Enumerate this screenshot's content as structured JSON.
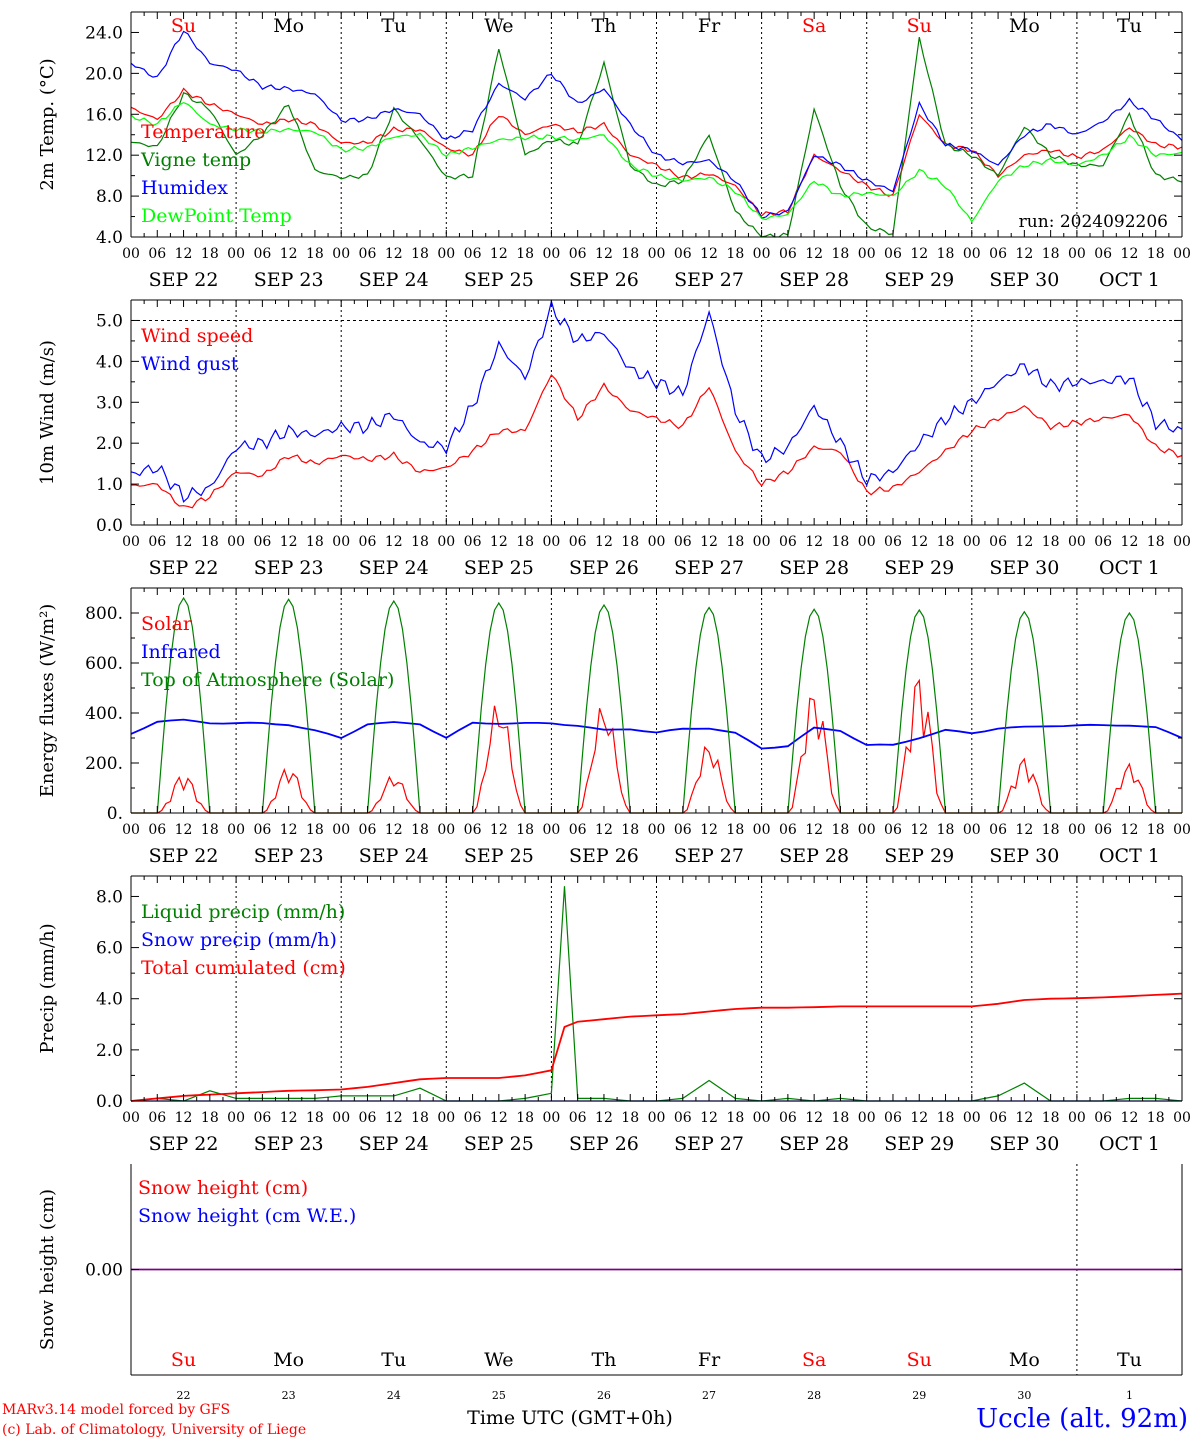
{
  "footer": {
    "model": "MARv3.14 model forced by GFS",
    "lab": "(c) Lab. of Climatology, University of Liege",
    "xlabel": "Time UTC (GMT+0h)",
    "station": "Uccle (alt. 92m)"
  },
  "hour_labels": [
    "00",
    "06",
    "12",
    "18"
  ],
  "final_hour_label": "00",
  "day_labels": [
    "SEP 22",
    "SEP 23",
    "SEP 24",
    "SEP 25",
    "SEP 26",
    "SEP 27",
    "SEP 28",
    "SEP 29",
    "SEP 30",
    "OCT  1"
  ],
  "weekdays": [
    {
      "name": "Su",
      "weekend": true
    },
    {
      "name": "Mo",
      "weekend": false
    },
    {
      "name": "Tu",
      "weekend": false
    },
    {
      "name": "We",
      "weekend": false
    },
    {
      "name": "Th",
      "weekend": false
    },
    {
      "name": "Fr",
      "weekend": false
    },
    {
      "name": "Sa",
      "weekend": true
    },
    {
      "name": "Su",
      "weekend": true
    },
    {
      "name": "Mo",
      "weekend": false
    },
    {
      "name": "Tu",
      "weekend": false
    }
  ],
  "day_numbers": [
    "22",
    "23",
    "24",
    "25",
    "26",
    "27",
    "28",
    "29",
    "30",
    "1"
  ],
  "colors": {
    "red": "#ff0000",
    "green": "#008000",
    "blue": "#0000ff",
    "lime": "#00ff00",
    "purple": "#800080",
    "weekend": "#ff0000"
  },
  "chart_data": [
    {
      "type": "line",
      "ylabel": "2m Temp. (°C)",
      "ylim": [
        4,
        26
      ],
      "yticks": [
        "4.0",
        "8.0",
        "12.0",
        "16.0",
        "20.0",
        "24.0"
      ],
      "dashed_y": null,
      "annotation": "run: 2024092206",
      "x": [
        "09-22 00",
        "09-22 06",
        "09-22 12",
        "09-22 18",
        "09-23 00",
        "09-23 06",
        "09-23 12",
        "09-23 18",
        "09-24 00",
        "09-24 06",
        "09-24 12",
        "09-24 18",
        "09-25 00",
        "09-25 06",
        "09-25 12",
        "09-25 18",
        "09-26 00",
        "09-26 06",
        "09-26 12",
        "09-26 18",
        "09-27 00",
        "09-27 06",
        "09-27 12",
        "09-27 18",
        "09-28 00",
        "09-28 06",
        "09-28 12",
        "09-28 18",
        "09-29 00",
        "09-29 06",
        "09-29 12",
        "09-29 18",
        "09-30 00",
        "09-30 06",
        "09-30 12",
        "09-30 18",
        "10-01 00",
        "10-01 06",
        "10-01 12",
        "10-01 18",
        "10-02 00"
      ],
      "series": [
        {
          "name": "Temperature",
          "color": "#ff0000",
          "values": [
            16.6,
            15.5,
            18.3,
            17.0,
            16.0,
            15.0,
            15.5,
            15.0,
            13.2,
            13.2,
            14.5,
            14.5,
            12.7,
            12.0,
            16.0,
            14.0,
            15.0,
            14.3,
            15.0,
            12.0,
            11.0,
            9.8,
            10.2,
            9.0,
            6.2,
            6.5,
            12.0,
            10.5,
            9.0,
            8.0,
            16.0,
            13.0,
            12.5,
            10.0,
            12.0,
            12.5,
            11.8,
            12.5,
            14.7,
            13.0,
            12.8
          ]
        },
        {
          "name": "Vigne temp",
          "color": "#008000",
          "values": [
            13.3,
            12.8,
            18.0,
            16.5,
            12.0,
            14.0,
            17.0,
            10.5,
            9.8,
            10.0,
            16.5,
            13.5,
            9.8,
            10.0,
            22.5,
            12.0,
            13.5,
            13.0,
            21.0,
            11.0,
            9.0,
            9.5,
            14.0,
            6.5,
            4.0,
            4.2,
            16.5,
            9.0,
            5.0,
            4.3,
            23.5,
            13.0,
            12.0,
            10.0,
            14.8,
            12.0,
            11.0,
            11.0,
            16.0,
            10.0,
            9.5
          ]
        },
        {
          "name": "Humidex",
          "color": "#0000ff",
          "values": [
            21.0,
            19.5,
            24.2,
            21.0,
            20.3,
            18.7,
            18.5,
            18.0,
            15.4,
            15.5,
            16.5,
            16.0,
            13.5,
            14.5,
            19.0,
            17.5,
            20.0,
            17.0,
            18.5,
            15.0,
            12.0,
            11.2,
            11.5,
            9.5,
            6.0,
            6.5,
            12.0,
            11.0,
            9.5,
            8.5,
            17.0,
            13.0,
            12.5,
            11.0,
            14.0,
            15.0,
            14.0,
            15.3,
            17.3,
            15.5,
            13.5
          ]
        },
        {
          "name": "DewPoint Temp",
          "color": "#00ff00",
          "values": [
            15.8,
            15.0,
            17.3,
            15.0,
            14.5,
            14.3,
            14.5,
            14.3,
            12.5,
            12.7,
            13.8,
            14.0,
            12.0,
            12.7,
            13.5,
            13.7,
            13.8,
            13.5,
            14.0,
            11.0,
            10.0,
            9.5,
            9.8,
            8.5,
            5.8,
            6.2,
            9.5,
            8.0,
            8.3,
            8.0,
            10.5,
            9.0,
            5.5,
            9.5,
            11.0,
            11.5,
            11.0,
            12.0,
            13.8,
            12.0,
            12.2
          ]
        }
      ]
    },
    {
      "type": "line",
      "ylabel": "10m Wind (m/s)",
      "ylim": [
        0,
        5.5
      ],
      "yticks": [
        "0.0",
        "1.0",
        "2.0",
        "3.0",
        "4.0",
        "5.0"
      ],
      "dashed_y": 5.0,
      "annotation": "",
      "x": [
        "09-22 00",
        "09-22 06",
        "09-22 12",
        "09-22 18",
        "09-23 00",
        "09-23 06",
        "09-23 12",
        "09-23 18",
        "09-24 00",
        "09-24 06",
        "09-24 12",
        "09-24 18",
        "09-25 00",
        "09-25 06",
        "09-25 12",
        "09-25 18",
        "09-26 00",
        "09-26 06",
        "09-26 12",
        "09-26 18",
        "09-27 00",
        "09-27 06",
        "09-27 12",
        "09-27 18",
        "09-28 00",
        "09-28 06",
        "09-28 12",
        "09-28 18",
        "09-29 00",
        "09-29 06",
        "09-29 12",
        "09-29 18",
        "09-30 00",
        "09-30 06",
        "09-30 12",
        "09-30 18",
        "10-01 00",
        "10-01 06",
        "10-01 12",
        "10-01 18",
        "10-02 00"
      ],
      "series": [
        {
          "name": "Wind speed",
          "color": "#ff0000",
          "values": [
            0.95,
            1.0,
            0.4,
            0.7,
            1.3,
            1.2,
            1.7,
            1.5,
            1.7,
            1.6,
            1.7,
            1.3,
            1.4,
            1.8,
            2.3,
            2.3,
            3.7,
            2.6,
            3.4,
            2.8,
            2.6,
            2.4,
            3.4,
            1.8,
            1.0,
            1.3,
            1.9,
            1.8,
            0.8,
            0.9,
            1.3,
            1.8,
            2.3,
            2.6,
            2.9,
            2.4,
            2.5,
            2.6,
            2.7,
            1.9,
            1.7
          ]
        },
        {
          "name": "Wind gust",
          "color": "#0000ff",
          "values": [
            1.25,
            1.4,
            0.7,
            0.9,
            1.9,
            2.0,
            2.3,
            2.2,
            2.4,
            2.4,
            2.7,
            2.0,
            1.9,
            2.9,
            4.4,
            3.6,
            5.3,
            4.5,
            4.7,
            3.8,
            3.5,
            3.2,
            5.2,
            2.8,
            1.6,
            1.9,
            2.9,
            2.0,
            1.1,
            1.3,
            2.0,
            2.6,
            3.0,
            3.5,
            3.9,
            3.4,
            3.5,
            3.5,
            3.6,
            2.5,
            2.3
          ]
        }
      ]
    },
    {
      "type": "line",
      "ylabel": "Energy fluxes (W/m²)",
      "ylim": [
        0,
        900
      ],
      "yticks": [
        "0.",
        "200.",
        "400.",
        "600.",
        "800."
      ],
      "dashed_y": null,
      "annotation": "",
      "series": [
        {
          "name": "Solar",
          "color": "#ff0000",
          "peaks": [
            160,
            190,
            155,
            460,
            450,
            285,
            505,
            570,
            225,
            200
          ]
        },
        {
          "name": "Infrared",
          "color": "#0000ff",
          "x": [
            "09-22 00",
            "09-22 06",
            "09-22 12",
            "09-22 18",
            "09-23 00",
            "09-23 06",
            "09-23 12",
            "09-23 18",
            "09-24 00",
            "09-24 06",
            "09-24 12",
            "09-24 18",
            "09-25 00",
            "09-25 06",
            "09-25 12",
            "09-25 18",
            "09-26 00",
            "09-26 06",
            "09-26 12",
            "09-26 18",
            "09-27 00",
            "09-27 06",
            "09-27 12",
            "09-27 18",
            "09-28 00",
            "09-28 06",
            "09-28 12",
            "09-28 18",
            "09-29 00",
            "09-29 06",
            "09-29 12",
            "09-29 18",
            "09-30 00",
            "09-30 06",
            "09-30 12",
            "09-30 18",
            "10-01 00",
            "10-01 06",
            "10-01 12",
            "10-01 18",
            "10-02 00"
          ],
          "values": [
            315,
            365,
            370,
            360,
            360,
            360,
            355,
            330,
            300,
            355,
            360,
            355,
            300,
            360,
            360,
            360,
            360,
            350,
            330,
            335,
            320,
            335,
            340,
            320,
            260,
            270,
            340,
            330,
            270,
            270,
            300,
            330,
            320,
            340,
            345,
            350,
            350,
            350,
            350,
            340,
            300
          ]
        },
        {
          "name": "Top of Atmosphere (Solar)",
          "color": "#008000",
          "peaks": [
            860,
            855,
            848,
            840,
            832,
            822,
            815,
            812,
            805,
            800
          ]
        }
      ]
    },
    {
      "type": "line",
      "ylabel": "Precip (mm/h)",
      "ylim": [
        0,
        8.8
      ],
      "yticks": [
        "0.0",
        "2.0",
        "4.0",
        "6.0",
        "8.0"
      ],
      "dashed_y": null,
      "annotation": "",
      "x": [
        "09-22 00",
        "09-22 06",
        "09-22 12",
        "09-22 18",
        "09-23 00",
        "09-23 06",
        "09-23 12",
        "09-23 18",
        "09-24 00",
        "09-24 06",
        "09-24 12",
        "09-24 18",
        "09-25 00",
        "09-25 06",
        "09-25 12",
        "09-25 18",
        "09-26 00",
        "09-26 03",
        "09-26 06",
        "09-26 12",
        "09-26 18",
        "09-27 00",
        "09-27 06",
        "09-27 12",
        "09-27 18",
        "09-28 00",
        "09-28 06",
        "09-28 12",
        "09-28 18",
        "09-29 00",
        "09-29 06",
        "09-29 12",
        "09-29 18",
        "09-30 00",
        "09-30 06",
        "09-30 12",
        "09-30 18",
        "10-01 00",
        "10-01 06",
        "10-01 12",
        "10-01 18",
        "10-02 00"
      ],
      "series": [
        {
          "name": "Liquid precip (mm/h)",
          "color": "#008000",
          "values": [
            0.0,
            0.1,
            0.0,
            0.4,
            0.1,
            0.1,
            0.1,
            0.1,
            0.2,
            0.2,
            0.2,
            0.5,
            0.0,
            0.0,
            0.0,
            0.1,
            0.3,
            8.4,
            0.1,
            0.1,
            0.0,
            0.0,
            0.1,
            0.8,
            0.1,
            0.0,
            0.1,
            0.0,
            0.1,
            0.0,
            0.0,
            0.0,
            0.0,
            0.0,
            0.2,
            0.7,
            0.0,
            0.0,
            0.0,
            0.1,
            0.1,
            0.0
          ]
        },
        {
          "name": "Snow precip (mm/h)",
          "color": "#0000ff",
          "values": [
            0.0,
            0.0,
            0.0,
            0.0,
            0.0,
            0.0,
            0.0,
            0.0,
            0.0,
            0.0,
            0.0,
            0.0,
            0.0,
            0.0,
            0.0,
            0.0,
            0.0,
            0.0,
            0.0,
            0.0,
            0.0,
            0.0,
            0.0,
            0.0,
            0.0,
            0.0,
            0.0,
            0.0,
            0.0,
            0.0,
            0.0,
            0.0,
            0.0,
            0.0,
            0.0,
            0.0,
            0.0,
            0.0,
            0.0,
            0.0,
            0.0,
            0.0
          ]
        },
        {
          "name": "Total cumulated (cm)",
          "color": "#ff0000",
          "values": [
            0.0,
            0.1,
            0.2,
            0.25,
            0.3,
            0.35,
            0.4,
            0.42,
            0.45,
            0.55,
            0.7,
            0.85,
            0.9,
            0.9,
            0.9,
            1.0,
            1.2,
            2.9,
            3.1,
            3.2,
            3.3,
            3.35,
            3.4,
            3.5,
            3.6,
            3.65,
            3.65,
            3.67,
            3.7,
            3.7,
            3.7,
            3.7,
            3.7,
            3.7,
            3.8,
            3.95,
            4.0,
            4.02,
            4.05,
            4.1,
            4.15,
            4.2
          ]
        }
      ]
    },
    {
      "type": "line",
      "ylabel": "Snow height (cm)",
      "ylim": [
        -1,
        1
      ],
      "yticks": [
        "0.00"
      ],
      "dashed_y": null,
      "annotation": "",
      "x": [
        "09-22 00",
        "10-02 00"
      ],
      "series": [
        {
          "name": "Snow height (cm)",
          "color": "#ff0000",
          "values": [
            0,
            0
          ]
        },
        {
          "name": "Snow height (cm W.E.)",
          "color": "#0000ff",
          "values": [
            0,
            0
          ]
        }
      ]
    }
  ]
}
